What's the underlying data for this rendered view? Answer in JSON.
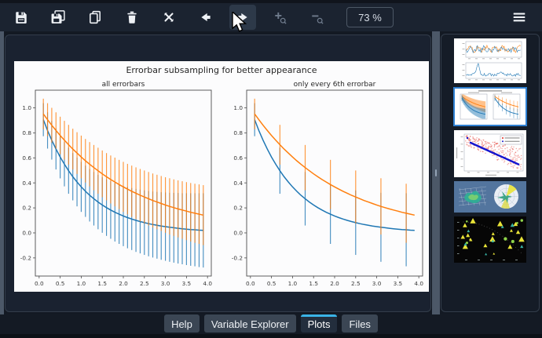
{
  "toolbar": {
    "buttons": [
      {
        "icon": "save-icon",
        "enabled": true,
        "hovered": false
      },
      {
        "icon": "save-all-icon",
        "enabled": true,
        "hovered": false
      },
      {
        "icon": "copy-icon",
        "enabled": true,
        "hovered": false
      },
      {
        "icon": "remove-icon",
        "enabled": true,
        "hovered": false
      },
      {
        "icon": "remove-all-icon",
        "enabled": true,
        "hovered": false
      },
      {
        "icon": "previous-plot-icon",
        "enabled": true,
        "hovered": false
      },
      {
        "icon": "next-plot-icon",
        "enabled": true,
        "hovered": true
      },
      {
        "icon": "zoom-in-icon",
        "enabled": false,
        "hovered": false
      },
      {
        "icon": "zoom-out-icon",
        "enabled": false,
        "hovered": false
      }
    ],
    "zoom_level": "73 %",
    "menu_icon": "hamburger-menu-icon"
  },
  "tabs": {
    "items": [
      {
        "label": "Help",
        "active": false
      },
      {
        "label": "Variable Explorer",
        "active": false
      },
      {
        "label": "Plots",
        "active": true
      },
      {
        "label": "Files",
        "active": false
      }
    ]
  },
  "thumbnails": [
    {
      "name": "noisy-signal-and-spectrum-plot",
      "selected": false
    },
    {
      "name": "errorbar-subsampling-plot",
      "selected": true
    },
    {
      "name": "scatter-regression-plot",
      "selected": false
    },
    {
      "name": "3d-surface-and-polar-plot",
      "selected": false
    },
    {
      "name": "dark-scatter-markers-plot",
      "selected": false
    }
  ],
  "colors": {
    "accent": "#3ab3e6",
    "selection": "#2f80d2",
    "series_blue": "#1f77b4",
    "series_orange": "#ff7f0e"
  },
  "chart_data": {
    "type": "line",
    "suptitle": "Errorbar subsampling for better appearance",
    "subplots": [
      {
        "title": "all errorbars",
        "errorevery": 1
      },
      {
        "title": "only every 6th errorbar",
        "errorevery": 6
      }
    ],
    "x": [
      0.1,
      0.2,
      0.3,
      0.4,
      0.5,
      0.6,
      0.7,
      0.8,
      0.9,
      1.0,
      1.1,
      1.2,
      1.3,
      1.4,
      1.5,
      1.6,
      1.7,
      1.8,
      1.9,
      2.0,
      2.1,
      2.2,
      2.3,
      2.4,
      2.5,
      2.6,
      2.7,
      2.8,
      2.9,
      3.0,
      3.1,
      3.2,
      3.3,
      3.4,
      3.5,
      3.6,
      3.7,
      3.8,
      3.9
    ],
    "series": [
      {
        "name": "blue",
        "color": "#1f77b4",
        "values": [
          0.905,
          0.819,
          0.741,
          0.67,
          0.607,
          0.549,
          0.497,
          0.449,
          0.407,
          0.368,
          0.333,
          0.301,
          0.273,
          0.247,
          0.223,
          0.202,
          0.183,
          0.165,
          0.15,
          0.135,
          0.122,
          0.111,
          0.1,
          0.091,
          0.082,
          0.074,
          0.067,
          0.061,
          0.055,
          0.05,
          0.045,
          0.041,
          0.037,
          0.033,
          0.03,
          0.027,
          0.025,
          0.022,
          0.02
        ],
        "yerr": [
          0.132,
          0.145,
          0.155,
          0.163,
          0.171,
          0.177,
          0.184,
          0.189,
          0.195,
          0.2,
          0.205,
          0.21,
          0.214,
          0.218,
          0.222,
          0.226,
          0.23,
          0.234,
          0.238,
          0.241,
          0.245,
          0.248,
          0.252,
          0.255,
          0.258,
          0.261,
          0.264,
          0.267,
          0.27,
          0.273,
          0.276,
          0.279,
          0.282,
          0.284,
          0.287,
          0.29,
          0.292,
          0.295,
          0.297
        ]
      },
      {
        "name": "orange",
        "color": "#ff7f0e",
        "values": [
          0.951,
          0.905,
          0.861,
          0.819,
          0.779,
          0.741,
          0.705,
          0.67,
          0.638,
          0.607,
          0.577,
          0.549,
          0.522,
          0.497,
          0.472,
          0.449,
          0.427,
          0.407,
          0.387,
          0.368,
          0.35,
          0.333,
          0.317,
          0.301,
          0.287,
          0.273,
          0.259,
          0.247,
          0.235,
          0.223,
          0.212,
          0.202,
          0.192,
          0.183,
          0.174,
          0.165,
          0.157,
          0.15,
          0.142
        ],
        "yerr": [
          0.122,
          0.132,
          0.139,
          0.145,
          0.15,
          0.155,
          0.159,
          0.163,
          0.167,
          0.171,
          0.174,
          0.177,
          0.181,
          0.184,
          0.187,
          0.189,
          0.192,
          0.195,
          0.197,
          0.2,
          0.202,
          0.205,
          0.207,
          0.21,
          0.212,
          0.214,
          0.216,
          0.218,
          0.22,
          0.222,
          0.225,
          0.226,
          0.228,
          0.23,
          0.232,
          0.234,
          0.236,
          0.238,
          0.24
        ]
      }
    ],
    "xticks": [
      0.0,
      0.5,
      1.0,
      1.5,
      2.0,
      2.5,
      3.0,
      3.5,
      4.0
    ],
    "yticks": [
      -0.2,
      0.0,
      0.2,
      0.4,
      0.6,
      0.8,
      1.0
    ],
    "xlim": [
      -0.09,
      4.09
    ],
    "ylim": [
      -0.345,
      1.141
    ],
    "grid": false,
    "legend": false
  }
}
